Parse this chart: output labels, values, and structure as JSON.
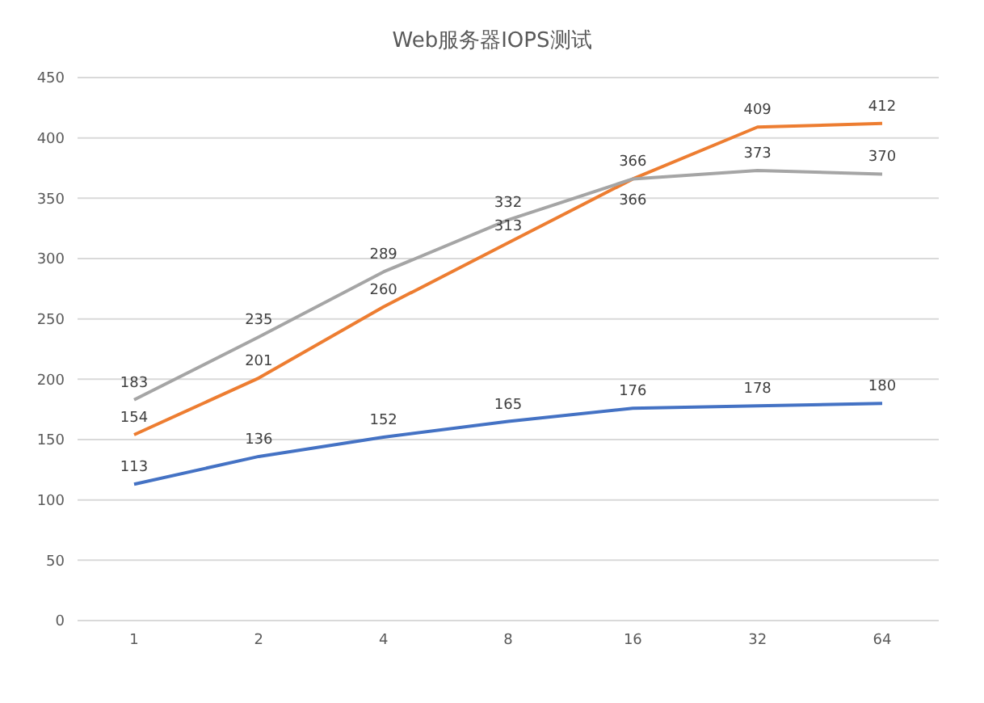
{
  "chart_data": {
    "type": "line",
    "title": "Web服务器IOPS测试",
    "categories": [
      "1",
      "2",
      "4",
      "8",
      "16",
      "32",
      "64"
    ],
    "series": [
      {
        "color": "#4472c4",
        "values": [
          113,
          136,
          152,
          165,
          176,
          178,
          180
        ]
      },
      {
        "color": "#ed7d31",
        "values": [
          154,
          201,
          260,
          313,
          366,
          409,
          412
        ]
      },
      {
        "color": "#a5a5a5",
        "values": [
          183,
          235,
          289,
          332,
          366,
          373,
          370
        ]
      }
    ],
    "ylim": [
      0,
      450
    ],
    "yticks": [
      0,
      50,
      100,
      150,
      200,
      250,
      300,
      350,
      400,
      450
    ],
    "grid": "y",
    "data_labels": true,
    "marker": "none",
    "line_style": "solid"
  }
}
